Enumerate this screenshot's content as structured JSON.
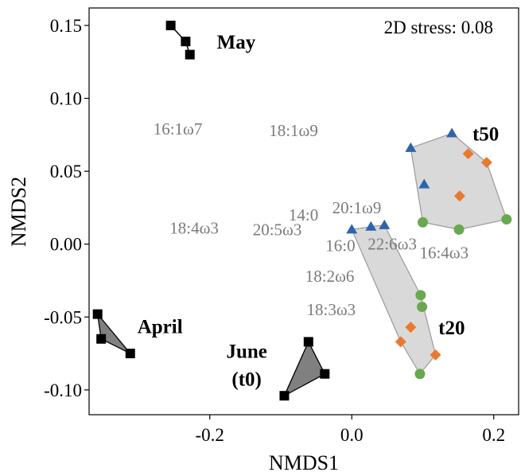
{
  "chart_data": {
    "type": "scatter",
    "xlabel": "NMDS1",
    "ylabel": "NMDS2",
    "annotation": "2D stress: 0.08",
    "xlim": [
      -0.37,
      0.235
    ],
    "ylim": [
      -0.117,
      0.162
    ],
    "x_ticks": [
      -0.2,
      0.0,
      0.2
    ],
    "x_tick_labels": [
      "-0.2",
      "0.0",
      "0.2"
    ],
    "y_ticks": [
      -0.1,
      -0.05,
      0.0,
      0.05,
      0.1,
      0.15
    ],
    "y_tick_labels": [
      "-0.10",
      "-0.05",
      "0.00",
      "0.05",
      "0.10",
      "0.15"
    ],
    "grid": false,
    "colors": {
      "blue": "#2f64ad",
      "orange": "#e8792f",
      "green": "#6aa84f",
      "black": "#000000",
      "hull_light": "#d9d9d9",
      "hull_light_stroke": "#9a9a9a",
      "hull_dark": "#808080",
      "fa_text": "#7a7a7a"
    },
    "groups": [
      {
        "label": "May",
        "hull_style": "line",
        "points": [
          {
            "marker": "square",
            "color": "black",
            "x": -0.255,
            "y": 0.15
          },
          {
            "marker": "square",
            "color": "black",
            "x": -0.234,
            "y": 0.139
          },
          {
            "marker": "square",
            "color": "black",
            "x": -0.228,
            "y": 0.13
          }
        ],
        "label_pos": {
          "x": -0.19,
          "y": 0.139
        }
      },
      {
        "label": "April",
        "hull_style": "dark",
        "points": [
          {
            "marker": "square",
            "color": "black",
            "x": -0.358,
            "y": -0.048
          },
          {
            "marker": "square",
            "color": "black",
            "x": -0.353,
            "y": -0.065
          },
          {
            "marker": "square",
            "color": "black",
            "x": -0.312,
            "y": -0.075
          }
        ],
        "label_pos": {
          "x": -0.302,
          "y": -0.056
        }
      },
      {
        "label": "June\n(t0)",
        "hull_style": "dark",
        "points": [
          {
            "marker": "square",
            "color": "black",
            "x": -0.061,
            "y": -0.067
          },
          {
            "marker": "square",
            "color": "black",
            "x": -0.038,
            "y": -0.089
          },
          {
            "marker": "square",
            "color": "black",
            "x": -0.095,
            "y": -0.104
          }
        ],
        "label_pos": {
          "x": -0.148,
          "y": -0.073
        }
      },
      {
        "label": "t50",
        "hull_style": "light",
        "points": [
          {
            "marker": "triangle",
            "color": "blue",
            "x": 0.083,
            "y": 0.066
          },
          {
            "marker": "triangle",
            "color": "blue",
            "x": 0.141,
            "y": 0.076
          },
          {
            "marker": "triangle",
            "color": "blue",
            "x": 0.102,
            "y": 0.041
          },
          {
            "marker": "diamond",
            "color": "orange",
            "x": 0.164,
            "y": 0.062
          },
          {
            "marker": "diamond",
            "color": "orange",
            "x": 0.19,
            "y": 0.056
          },
          {
            "marker": "diamond",
            "color": "orange",
            "x": 0.152,
            "y": 0.033
          },
          {
            "marker": "circle",
            "color": "green",
            "x": 0.1,
            "y": 0.015
          },
          {
            "marker": "circle",
            "color": "green",
            "x": 0.151,
            "y": 0.01
          },
          {
            "marker": "circle",
            "color": "green",
            "x": 0.218,
            "y": 0.017
          }
        ],
        "label_pos": {
          "x": 0.17,
          "y": 0.076
        }
      },
      {
        "label": "t20",
        "hull_style": "light",
        "points": [
          {
            "marker": "triangle",
            "color": "blue",
            "x": 0.0,
            "y": 0.01
          },
          {
            "marker": "triangle",
            "color": "blue",
            "x": 0.027,
            "y": 0.012
          },
          {
            "marker": "triangle",
            "color": "blue",
            "x": 0.046,
            "y": 0.013
          },
          {
            "marker": "circle",
            "color": "green",
            "x": 0.097,
            "y": -0.035
          },
          {
            "marker": "circle",
            "color": "green",
            "x": 0.099,
            "y": -0.043
          },
          {
            "marker": "circle",
            "color": "green",
            "x": 0.096,
            "y": -0.089
          },
          {
            "marker": "diamond",
            "color": "orange",
            "x": 0.083,
            "y": -0.057
          },
          {
            "marker": "diamond",
            "color": "orange",
            "x": 0.069,
            "y": -0.067
          },
          {
            "marker": "diamond",
            "color": "orange",
            "x": 0.118,
            "y": -0.076
          }
        ],
        "label_pos": {
          "x": 0.122,
          "y": -0.057
        }
      }
    ],
    "fatty_acid_labels": [
      {
        "text": "16:1ω7",
        "x": -0.245,
        "y": 0.079
      },
      {
        "text": "18:1ω9",
        "x": -0.082,
        "y": 0.078
      },
      {
        "text": "14:0",
        "x": -0.068,
        "y": 0.02
      },
      {
        "text": "20:1ω9",
        "x": 0.007,
        "y": 0.025
      },
      {
        "text": "18:4ω3",
        "x": -0.222,
        "y": 0.011
      },
      {
        "text": "20:5ω3",
        "x": -0.105,
        "y": 0.01
      },
      {
        "text": "16:0",
        "x": -0.016,
        "y": -0.001
      },
      {
        "text": "22:6ω3",
        "x": 0.057,
        "y": 0.0
      },
      {
        "text": "16:4ω3",
        "x": 0.13,
        "y": -0.006
      },
      {
        "text": "18:2ω6",
        "x": -0.031,
        "y": -0.022
      },
      {
        "text": "18:3ω3",
        "x": -0.029,
        "y": -0.045
      }
    ]
  }
}
